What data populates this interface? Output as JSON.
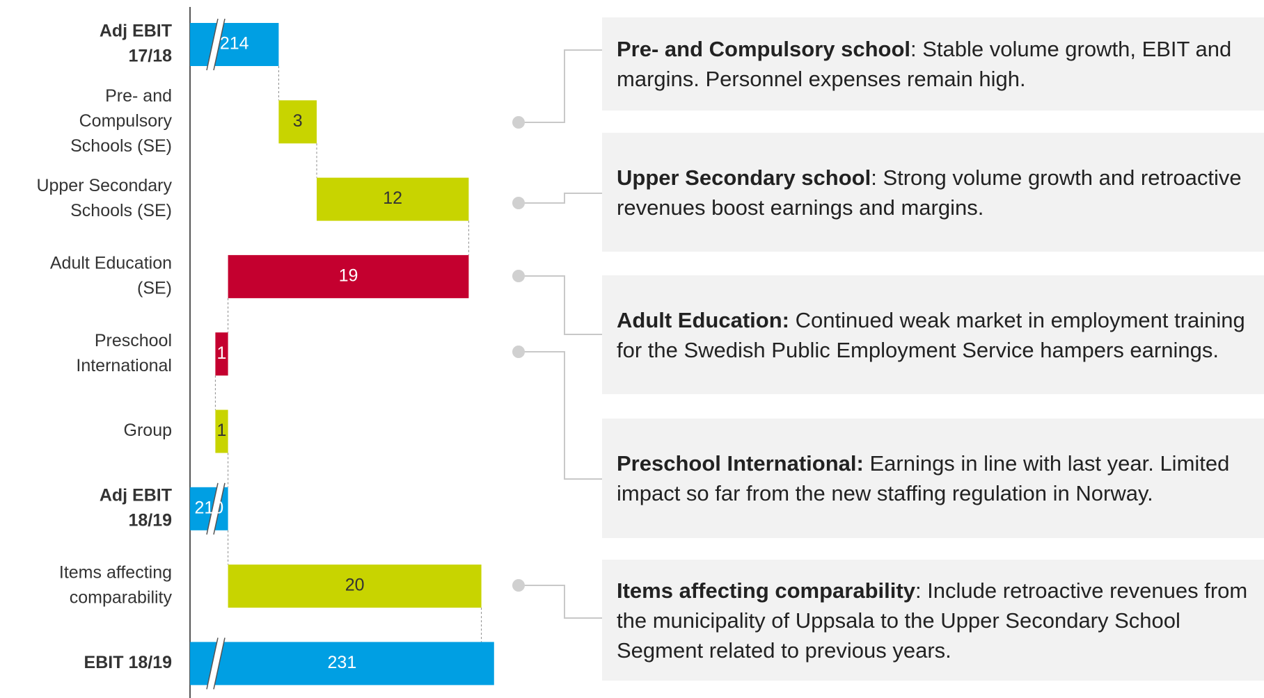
{
  "chart_data": {
    "type": "waterfall",
    "categories": [
      [
        "Adj EBIT",
        "17/18"
      ],
      [
        "Pre- and",
        "Compulsory",
        "Schools (SE)"
      ],
      [
        "Upper Secondary",
        "Schools (SE)"
      ],
      [
        "Adult Education",
        "(SE)"
      ],
      [
        "Preschool",
        "International"
      ],
      [
        "Group"
      ],
      [
        "Adj EBIT",
        "18/19"
      ],
      [
        "Items affecting",
        "comparability"
      ],
      [
        "EBIT 18/19"
      ]
    ],
    "values": [
      214,
      3,
      12,
      -19,
      -1,
      1,
      210,
      20,
      231
    ],
    "value_labels": [
      "214",
      "3",
      "12",
      "19",
      "1",
      "1",
      "210",
      "20",
      "231"
    ],
    "total_indices": [
      0,
      6,
      8
    ],
    "broken_axis": true,
    "colors": {
      "total": "#009fe3",
      "increase": "#c8d400",
      "decrease": "#c4002f"
    },
    "xlim": [
      207,
      232
    ],
    "annotations": [
      {
        "title": "Pre- and Compulsory school",
        "text": ": Stable volume growth, EBIT and margins. Personnel expenses remain high."
      },
      {
        "title": "Upper Secondary school",
        "text": ": Strong volume growth and retroactive revenues boost earnings and margins."
      },
      {
        "title": "Adult Education:",
        "text": " Continued weak market in employment training for the Swedish Public Employment Service hampers earnings."
      },
      {
        "title": "Preschool International:",
        "text": " Earnings in line with last year. Limited impact so far from the new staffing regulation in Norway."
      },
      {
        "title": "Items affecting comparability",
        "text": ": Include retroactive revenues from the municipality of Uppsala to the Upper Secondary School Segment related to previous years."
      }
    ]
  }
}
